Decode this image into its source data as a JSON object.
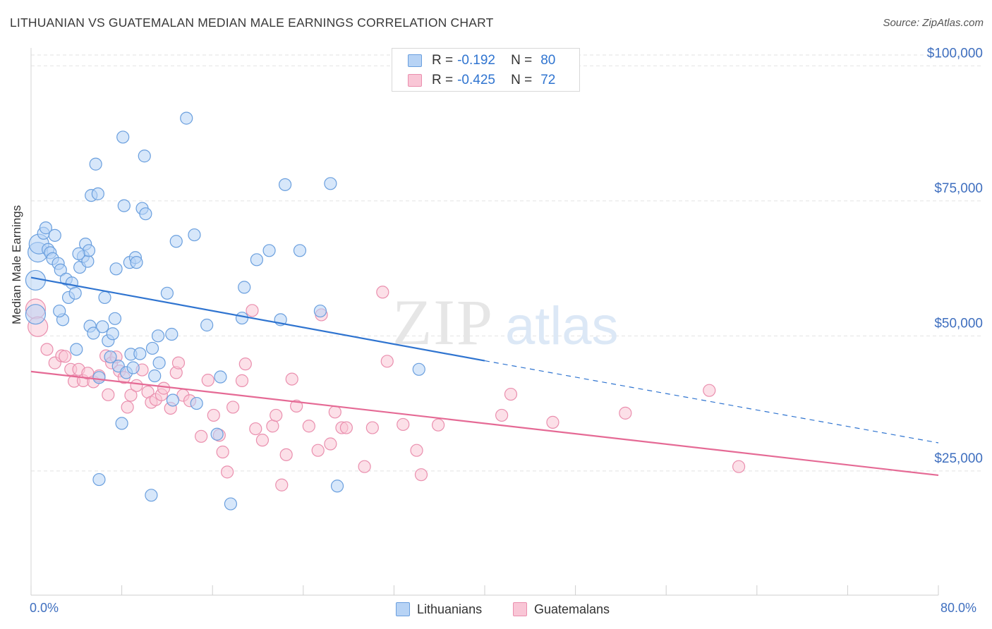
{
  "header": {
    "title": "LITHUANIAN VS GUATEMALAN MEDIAN MALE EARNINGS CORRELATION CHART",
    "source": "Source: ZipAtlas.com"
  },
  "watermark": {
    "zip": "ZIP",
    "atlas": "atlas"
  },
  "colors": {
    "blue_fill": "#b7d3f5",
    "blue_stroke": "#6a9fde",
    "blue_line": "#2f74d0",
    "pink_fill": "#f9c6d6",
    "pink_stroke": "#ea8fae",
    "pink_line": "#e56a95",
    "tick_label": "#3f6fbf",
    "grid": "#e2e2e2"
  },
  "legend": {
    "rows": [
      {
        "r_label": "R =",
        "r_value": "-0.192",
        "n_label": "N =",
        "n_value": "80"
      },
      {
        "r_label": "R =",
        "r_value": "-0.425",
        "n_label": "N =",
        "n_value": "72"
      }
    ]
  },
  "bottom_legend": {
    "items": [
      "Lithuanians",
      "Guatemalans"
    ]
  },
  "chart_data": {
    "type": "scatter",
    "title": "LITHUANIAN VS GUATEMALAN MEDIAN MALE EARNINGS CORRELATION CHART",
    "ylabel": "Median Male Earnings",
    "xlabel": "",
    "x_tick_labels": [
      "0.0%",
      "80.0%"
    ],
    "y_tick_labels": [
      "$100,000",
      "$75,000",
      "$50,000",
      "$25,000"
    ],
    "y_ticks": [
      100000,
      75000,
      50000,
      25000
    ],
    "xlim": [
      0,
      80
    ],
    "ylim": [
      2000,
      102000
    ],
    "grid": true,
    "legend_position": "top-center",
    "series": [
      {
        "name": "Lithuanians",
        "r": -0.192,
        "n": 80,
        "trend": {
          "x": [
            0,
            40
          ],
          "y": [
            60800,
            45400
          ]
        },
        "trend_dashed": {
          "x": [
            40,
            80
          ],
          "y": [
            45400,
            30200
          ]
        },
        "points": [
          [
            0.4,
            60300
          ],
          [
            0.4,
            54000
          ],
          [
            0.6,
            65500
          ],
          [
            0.7,
            67000
          ],
          [
            1.1,
            69000
          ],
          [
            1.3,
            70000
          ],
          [
            1.5,
            66000
          ],
          [
            1.7,
            65400
          ],
          [
            1.9,
            64300
          ],
          [
            2.1,
            68600
          ],
          [
            2.4,
            63400
          ],
          [
            2.6,
            62200
          ],
          [
            2.8,
            53000
          ],
          [
            3.1,
            60500
          ],
          [
            3.3,
            57100
          ],
          [
            3.6,
            59800
          ],
          [
            3.9,
            57900
          ],
          [
            4.0,
            47500
          ],
          [
            4.3,
            62700
          ],
          [
            4.6,
            64700
          ],
          [
            4.8,
            67000
          ],
          [
            5.0,
            63800
          ],
          [
            5.1,
            65800
          ],
          [
            5.2,
            51800
          ],
          [
            5.3,
            76000
          ],
          [
            5.5,
            50500
          ],
          [
            5.7,
            81800
          ],
          [
            5.9,
            76300
          ],
          [
            6.0,
            42300
          ],
          [
            6.3,
            51700
          ],
          [
            6.5,
            57100
          ],
          [
            6.8,
            49100
          ],
          [
            7.0,
            46100
          ],
          [
            7.2,
            50400
          ],
          [
            7.4,
            53200
          ],
          [
            7.5,
            62400
          ],
          [
            7.7,
            44400
          ],
          [
            8.0,
            33800
          ],
          [
            8.1,
            86800
          ],
          [
            8.2,
            74100
          ],
          [
            8.4,
            43200
          ],
          [
            8.7,
            63600
          ],
          [
            8.8,
            46600
          ],
          [
            9.0,
            44100
          ],
          [
            9.2,
            64500
          ],
          [
            9.3,
            63600
          ],
          [
            9.6,
            46700
          ],
          [
            9.8,
            73600
          ],
          [
            10.0,
            83300
          ],
          [
            10.1,
            72600
          ],
          [
            10.6,
            20500
          ],
          [
            10.7,
            47700
          ],
          [
            10.9,
            42600
          ],
          [
            11.2,
            50000
          ],
          [
            11.3,
            45000
          ],
          [
            12.0,
            57900
          ],
          [
            12.4,
            50300
          ],
          [
            12.5,
            38100
          ],
          [
            12.8,
            67500
          ],
          [
            13.7,
            90300
          ],
          [
            14.4,
            68700
          ],
          [
            14.6,
            37500
          ],
          [
            15.5,
            52000
          ],
          [
            16.4,
            31800
          ],
          [
            16.7,
            42400
          ],
          [
            17.6,
            18900
          ],
          [
            18.6,
            53300
          ],
          [
            18.8,
            59000
          ],
          [
            19.9,
            64100
          ],
          [
            21.0,
            65800
          ],
          [
            22.0,
            53000
          ],
          [
            22.4,
            78000
          ],
          [
            23.7,
            65800
          ],
          [
            25.5,
            54600
          ],
          [
            26.4,
            78200
          ],
          [
            27.0,
            22200
          ],
          [
            34.2,
            43800
          ],
          [
            6.0,
            23400
          ],
          [
            2.5,
            54600
          ],
          [
            4.2,
            65200
          ]
        ]
      },
      {
        "name": "Guatemalans",
        "r": -0.425,
        "n": 72,
        "trend": {
          "x": [
            0,
            80
          ],
          "y": [
            43400,
            24200
          ]
        },
        "points": [
          [
            0.4,
            55000
          ],
          [
            0.6,
            51700
          ],
          [
            1.4,
            47500
          ],
          [
            2.1,
            45000
          ],
          [
            2.7,
            46300
          ],
          [
            3.0,
            46200
          ],
          [
            3.5,
            43800
          ],
          [
            3.8,
            41600
          ],
          [
            4.2,
            43800
          ],
          [
            4.6,
            41700
          ],
          [
            5.0,
            43100
          ],
          [
            5.5,
            41500
          ],
          [
            6.0,
            42600
          ],
          [
            6.6,
            46300
          ],
          [
            6.8,
            39100
          ],
          [
            7.1,
            45000
          ],
          [
            7.5,
            46100
          ],
          [
            7.8,
            43500
          ],
          [
            8.2,
            42300
          ],
          [
            8.5,
            36800
          ],
          [
            8.8,
            39000
          ],
          [
            9.3,
            40800
          ],
          [
            9.8,
            43700
          ],
          [
            10.3,
            39600
          ],
          [
            10.6,
            37700
          ],
          [
            11.0,
            38200
          ],
          [
            11.5,
            39100
          ],
          [
            11.7,
            40300
          ],
          [
            12.3,
            36600
          ],
          [
            12.8,
            43200
          ],
          [
            13.0,
            45000
          ],
          [
            13.4,
            39000
          ],
          [
            14.0,
            38000
          ],
          [
            15.0,
            31400
          ],
          [
            15.6,
            41800
          ],
          [
            16.1,
            35300
          ],
          [
            16.6,
            31600
          ],
          [
            16.9,
            28500
          ],
          [
            17.3,
            24800
          ],
          [
            17.8,
            36800
          ],
          [
            18.6,
            41700
          ],
          [
            18.9,
            44800
          ],
          [
            19.5,
            54700
          ],
          [
            19.8,
            32800
          ],
          [
            20.4,
            30700
          ],
          [
            21.3,
            33300
          ],
          [
            21.6,
            35300
          ],
          [
            22.1,
            22400
          ],
          [
            22.5,
            28000
          ],
          [
            23.0,
            42000
          ],
          [
            23.4,
            37000
          ],
          [
            24.5,
            33300
          ],
          [
            25.3,
            28800
          ],
          [
            26.4,
            30000
          ],
          [
            26.8,
            35900
          ],
          [
            27.4,
            33000
          ],
          [
            27.8,
            33000
          ],
          [
            29.4,
            25800
          ],
          [
            30.1,
            33000
          ],
          [
            31.0,
            58100
          ],
          [
            31.4,
            45300
          ],
          [
            32.8,
            33600
          ],
          [
            34.0,
            28800
          ],
          [
            34.4,
            24300
          ],
          [
            35.9,
            33500
          ],
          [
            41.5,
            35300
          ],
          [
            42.3,
            39200
          ],
          [
            46.0,
            34000
          ],
          [
            52.4,
            35700
          ],
          [
            59.8,
            39900
          ],
          [
            62.4,
            25800
          ],
          [
            25.6,
            53900
          ]
        ]
      }
    ]
  }
}
